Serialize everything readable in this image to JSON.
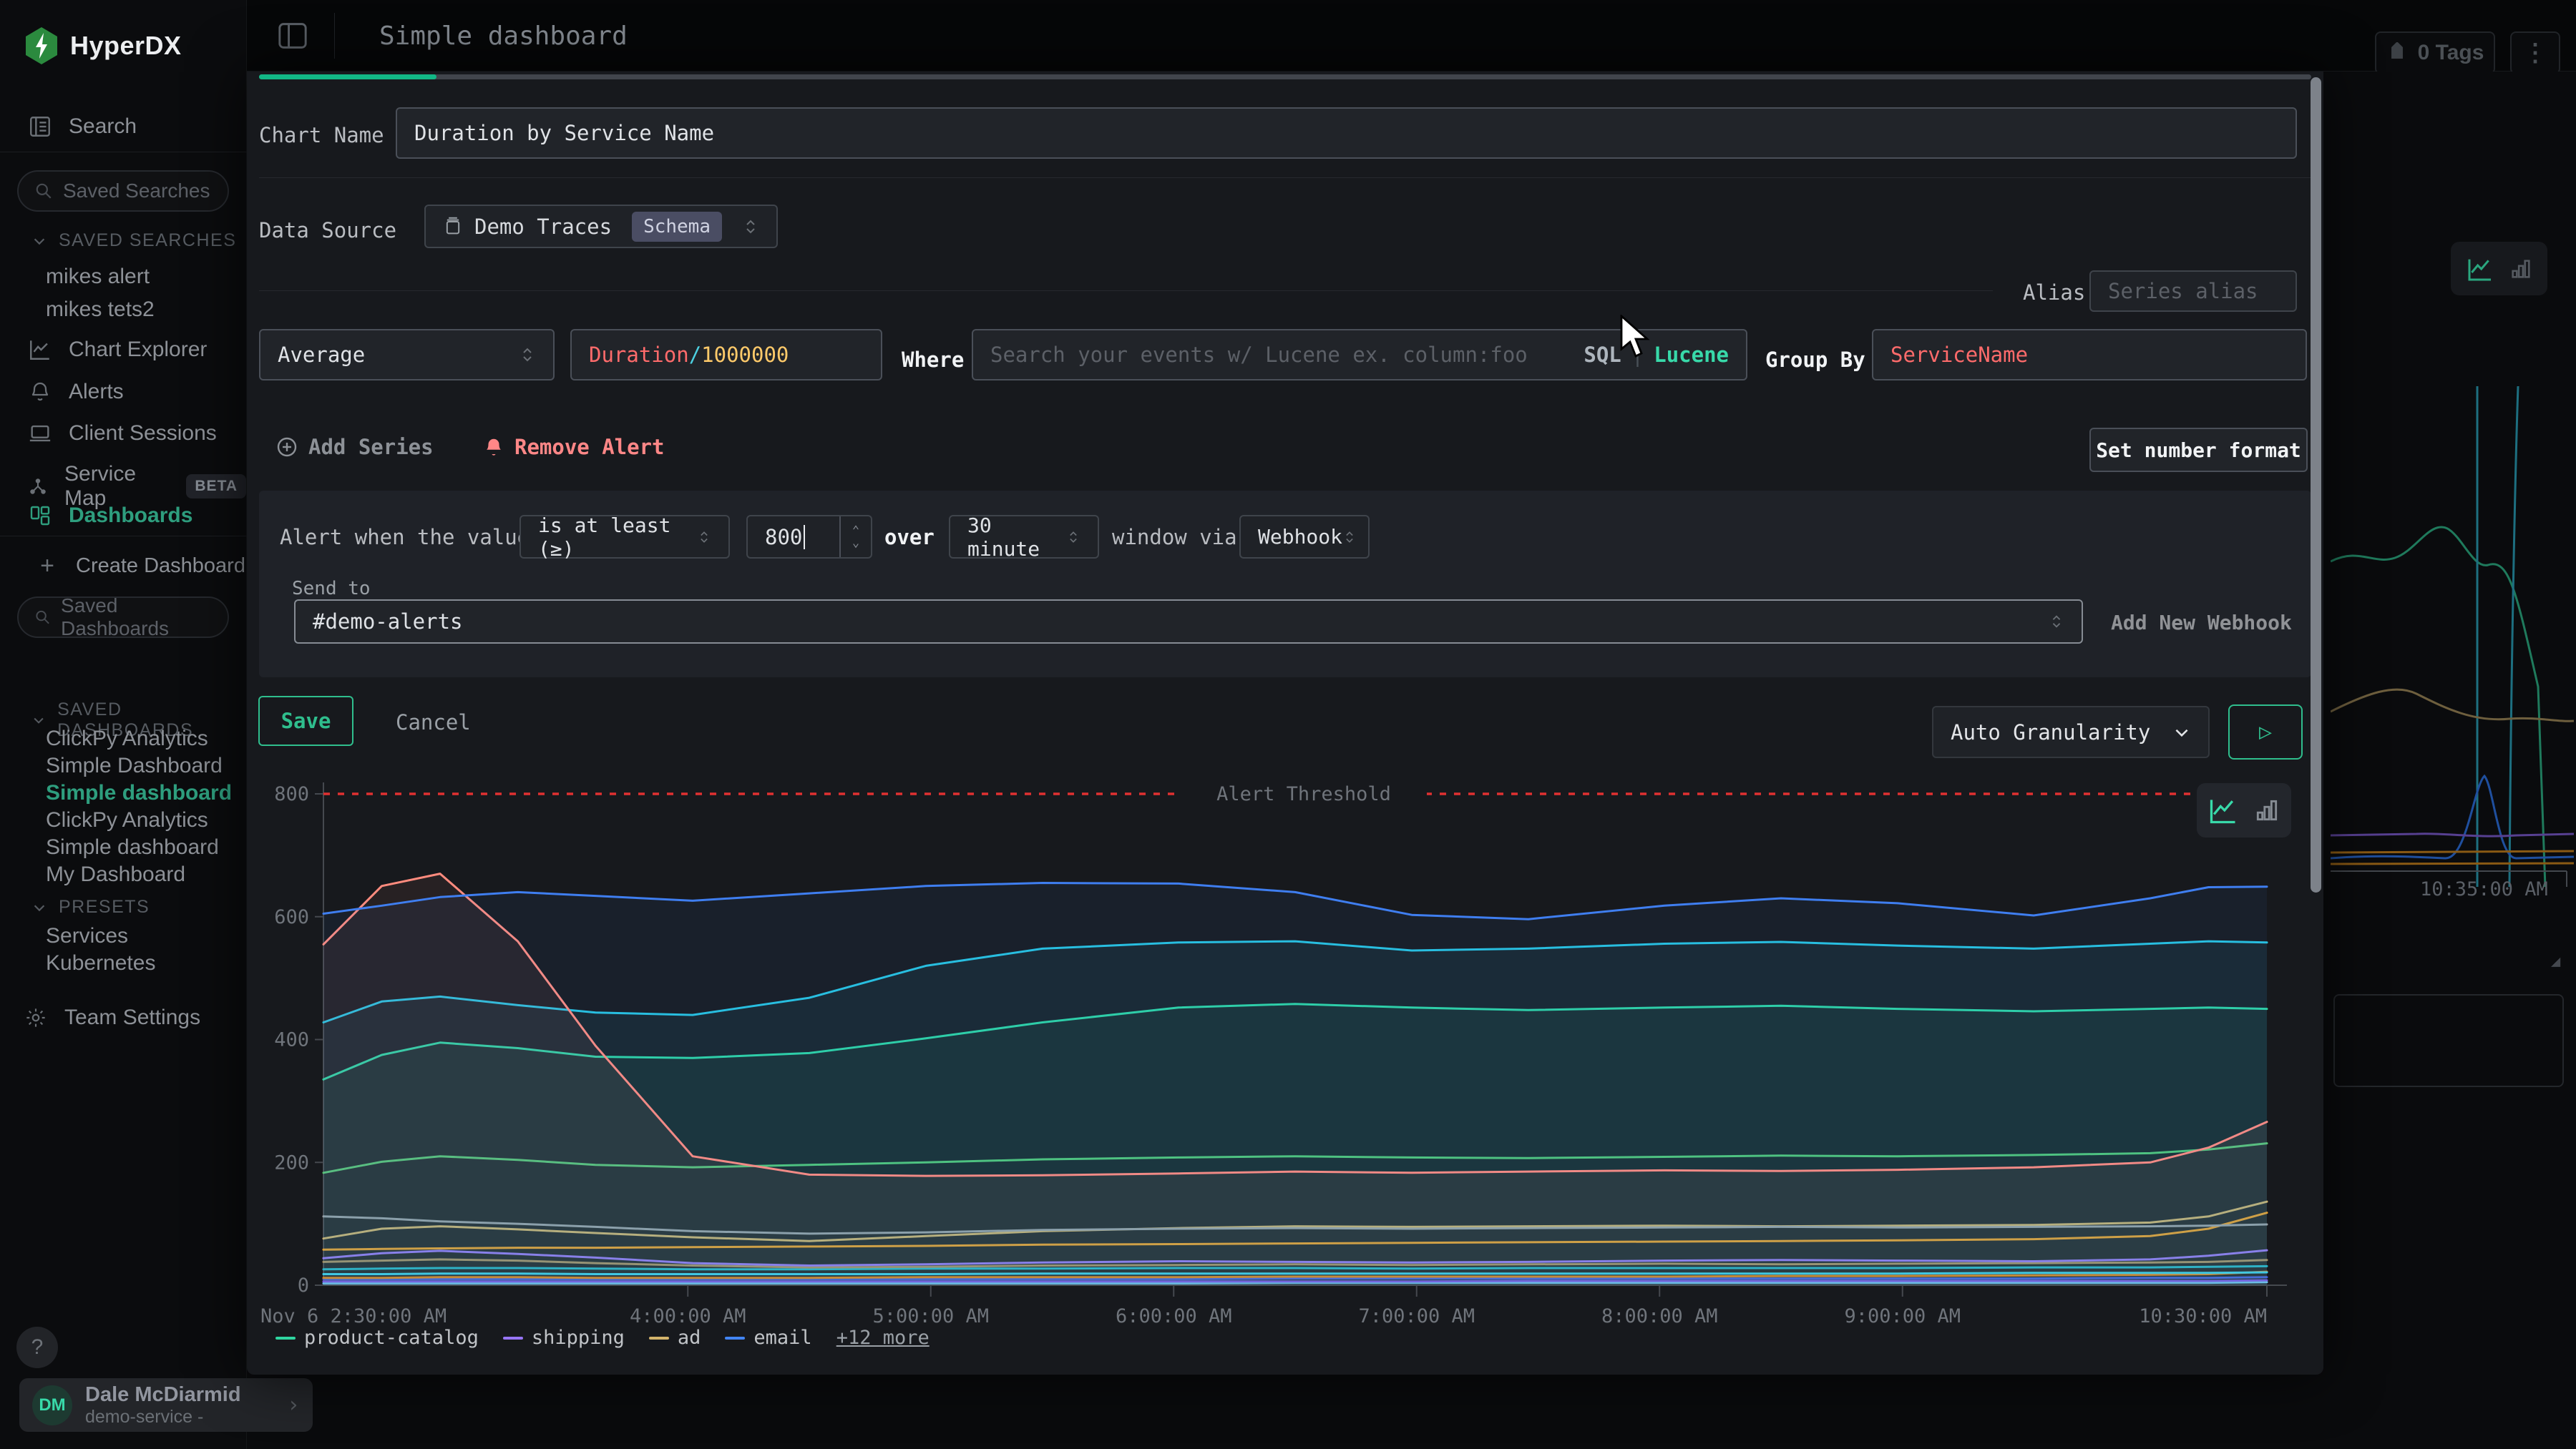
{
  "sidebar": {
    "logo": "HyperDX",
    "nav_search": "Search",
    "saved_searches_placeholder": "Saved Searches",
    "saved_searches_header": "SAVED SEARCHES",
    "saved_searches": [
      "mikes alert",
      "mikes tets2"
    ],
    "nav": [
      "Chart Explorer",
      "Alerts",
      "Client Sessions",
      "Service Map",
      "Dashboards"
    ],
    "beta_badge": "BETA",
    "create_dashboard": "Create Dashboard",
    "saved_dashboards_placeholder": "Saved Dashboards",
    "saved_dashboards_header": "SAVED DASHBOARDS",
    "saved_dashboards": [
      "ClickPy Analytics",
      "Simple Dashboard",
      "Simple dashboard",
      "ClickPy Analytics",
      "Simple dashboard",
      "My Dashboard"
    ],
    "presets_header": "PRESETS",
    "presets": [
      "Services",
      "Kubernetes"
    ],
    "team_settings": "Team Settings",
    "help": "?",
    "user": {
      "initials": "DM",
      "name": "Dale McDiarmid",
      "org": "demo-service -"
    }
  },
  "topbar": {
    "title": "Simple dashboard",
    "tags": "0 Tags"
  },
  "background": {
    "time_label": "10:35:00 AM"
  },
  "modal": {
    "chart_name_label": "Chart Name",
    "chart_name_value": "Duration by Service Name",
    "data_source_label": "Data Source",
    "data_source_value": "Demo Traces",
    "schema_badge": "Schema",
    "alias_label": "Alias",
    "alias_placeholder": "Series alias",
    "aggregation": "Average",
    "expr": {
      "field": "Duration",
      "slash": "/",
      "divisor": "1000000"
    },
    "where_label": "Where",
    "where_placeholder": "Search your events w/ Lucene ex. column:foo",
    "sql": "SQL",
    "lucene": "Lucene",
    "group_by_label": "Group By",
    "group_by_value": "ServiceName",
    "add_series": "Add Series",
    "remove_alert": "Remove Alert",
    "set_number_format": "Set number format",
    "alert": {
      "prefix": "Alert when the value",
      "operator": "is at least (≥)",
      "value": "800",
      "over": "over",
      "window": "30 minute",
      "suffix": "window via",
      "channel": "Webhook",
      "send_to_label": "Send to",
      "send_to_value": "#demo-alerts",
      "add_new_webhook": "Add New Webhook"
    },
    "save": "Save",
    "cancel": "Cancel",
    "granularity": "Auto Granularity"
  },
  "chart_data": {
    "type": "line",
    "ylim": [
      0,
      800
    ],
    "yticks": [
      0,
      200,
      400,
      600,
      800
    ],
    "threshold": {
      "value": 800,
      "label": "Alert Threshold",
      "color": "#e03131"
    },
    "xticks": [
      {
        "f": 0.0,
        "label": "Nov 6 2:30:00 AM"
      },
      {
        "f": 0.1875,
        "label": "4:00:00 AM"
      },
      {
        "f": 0.3125,
        "label": "5:00:00 AM"
      },
      {
        "f": 0.4375,
        "label": "6:00:00 AM"
      },
      {
        "f": 0.5625,
        "label": "7:00:00 AM"
      },
      {
        "f": 0.6875,
        "label": "8:00:00 AM"
      },
      {
        "f": 0.8125,
        "label": "9:00:00 AM"
      },
      {
        "f": 1.0,
        "label": "10:30:00 AM"
      }
    ],
    "x": [
      0,
      0.03,
      0.06,
      0.1,
      0.14,
      0.19,
      0.25,
      0.31,
      0.37,
      0.44,
      0.5,
      0.56,
      0.62,
      0.69,
      0.75,
      0.81,
      0.88,
      0.94,
      0.97,
      1
    ],
    "series": [
      {
        "name": "",
        "color": "#6fc4f2",
        "values": [
          3,
          3,
          3,
          3,
          3,
          3,
          3,
          3,
          3,
          3,
          4,
          4,
          4,
          4,
          4,
          4,
          4,
          4,
          4,
          5
        ]
      },
      {
        "name": "",
        "color": "#7a52e8",
        "values": [
          6,
          6,
          6,
          6,
          6,
          6,
          6,
          6,
          6,
          6,
          6,
          6,
          7,
          7,
          7,
          7,
          7,
          7,
          7,
          8
        ]
      },
      {
        "name": "",
        "color": "#3f5ae0",
        "values": [
          10,
          10,
          10,
          10,
          10,
          10,
          10,
          10,
          10,
          10,
          11,
          11,
          11,
          11,
          11,
          11,
          11,
          12,
          12,
          13
        ]
      },
      {
        "name": "",
        "color": "#e8820c",
        "values": [
          12,
          12,
          13,
          13,
          12,
          12,
          12,
          13,
          13,
          13,
          14,
          14,
          14,
          14,
          15,
          15,
          16,
          17,
          18,
          22
        ]
      },
      {
        "name": "",
        "color": "#35d3f0",
        "values": [
          18,
          18,
          19,
          19,
          18,
          18,
          18,
          18,
          19,
          19,
          19,
          19,
          19,
          19,
          19,
          19,
          20,
          20,
          20,
          21
        ]
      },
      {
        "name": "",
        "color": "#1fb6c9",
        "values": [
          26,
          27,
          28,
          28,
          27,
          26,
          26,
          27,
          27,
          28,
          28,
          27,
          28,
          28,
          28,
          28,
          29,
          29,
          30,
          31
        ]
      },
      {
        "name": "",
        "color": "#a98e5e",
        "values": [
          38,
          40,
          42,
          40,
          36,
          32,
          29,
          30,
          32,
          33,
          34,
          33,
          34,
          35,
          34,
          35,
          36,
          37,
          38,
          41
        ]
      },
      {
        "name": "shipping",
        "color": "#9775fa",
        "values": [
          44,
          52,
          56,
          51,
          45,
          36,
          32,
          34,
          37,
          39,
          38,
          37,
          38,
          40,
          41,
          40,
          39,
          42,
          48,
          57
        ]
      },
      {
        "name": "",
        "color": "#f5a021",
        "values": [
          58,
          59,
          60,
          61,
          61,
          62,
          63,
          64,
          66,
          67,
          68,
          69,
          70,
          71,
          72,
          73,
          75,
          80,
          92,
          118
        ]
      },
      {
        "name": "ad",
        "color": "#d3b36b",
        "values": [
          76,
          92,
          96,
          91,
          85,
          78,
          72,
          80,
          88,
          93,
          96,
          95,
          96,
          97,
          96,
          97,
          98,
          102,
          112,
          136
        ]
      },
      {
        "name": "",
        "color": "#9aa0a6",
        "values": [
          112,
          109,
          104,
          100,
          95,
          88,
          84,
          86,
          90,
          92,
          93,
          92,
          93,
          94,
          95,
          94,
          95,
          96,
          97,
          99
        ]
      },
      {
        "name": "",
        "color": "#57c86f",
        "values": [
          183,
          201,
          210,
          204,
          196,
          192,
          196,
          200,
          205,
          208,
          210,
          208,
          207,
          209,
          211,
          210,
          212,
          215,
          221,
          231
        ]
      },
      {
        "name": "product-catalog",
        "color": "#2fd6a0",
        "fill": true,
        "values": [
          335,
          375,
          395,
          386,
          372,
          370,
          378,
          402,
          428,
          452,
          458,
          452,
          448,
          452,
          455,
          450,
          446,
          450,
          452,
          450
        ]
      },
      {
        "name": "",
        "color": "#27c3df",
        "fill": true,
        "values": [
          428,
          462,
          470,
          456,
          444,
          440,
          468,
          520,
          548,
          558,
          560,
          545,
          548,
          556,
          559,
          553,
          548,
          556,
          560,
          558
        ]
      },
      {
        "name": "",
        "color": "#ff8b7e",
        "fill": true,
        "values": [
          555,
          650,
          670,
          560,
          390,
          210,
          180,
          178,
          179,
          182,
          185,
          183,
          185,
          187,
          186,
          188,
          192,
          200,
          224,
          266
        ]
      },
      {
        "name": "email",
        "color": "#3f7ef0",
        "fill": true,
        "values": [
          605,
          618,
          632,
          640,
          634,
          626,
          638,
          650,
          655,
          654,
          640,
          603,
          596,
          618,
          630,
          622,
          602,
          630,
          648,
          649
        ]
      }
    ],
    "legend": [
      {
        "label": "product-catalog",
        "color": "#2fd6a0"
      },
      {
        "label": "shipping",
        "color": "#9775fa"
      },
      {
        "label": "ad",
        "color": "#d3b36b"
      },
      {
        "label": "email",
        "color": "#4285f4"
      },
      {
        "label": "+12 more",
        "link": true
      }
    ]
  }
}
